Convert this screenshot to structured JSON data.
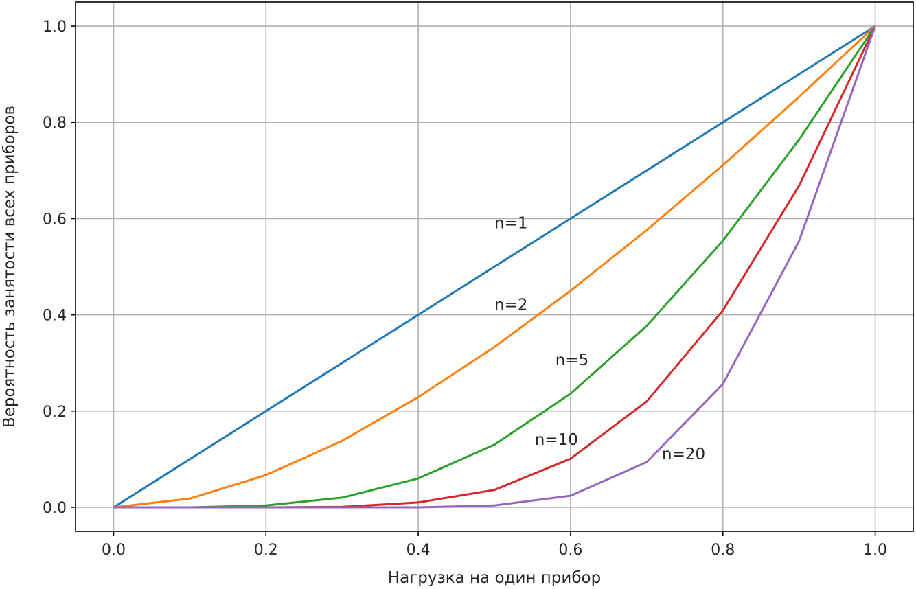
{
  "chart_data": {
    "type": "line",
    "title": "",
    "xlabel": "Нагрузка на один прибор",
    "ylabel": "Вероятность занятости всех приборов",
    "xlim": [
      -0.05,
      1.05
    ],
    "ylim": [
      -0.05,
      1.05
    ],
    "xticks": [
      0.0,
      0.2,
      0.4,
      0.6,
      0.8,
      1.0
    ],
    "xtick_labels": [
      "0.0",
      "0.2",
      "0.4",
      "0.6",
      "0.8",
      "1.0"
    ],
    "yticks": [
      0.0,
      0.2,
      0.4,
      0.6,
      0.8,
      1.0
    ],
    "ytick_labels": [
      "0.0",
      "0.2",
      "0.4",
      "0.6",
      "0.8",
      "1.0"
    ],
    "grid": true,
    "legend": "none",
    "x": [
      0.0,
      0.1,
      0.2,
      0.3,
      0.4,
      0.5,
      0.6,
      0.7,
      0.8,
      0.9,
      1.0
    ],
    "series": [
      {
        "color": "#1f77b4",
        "values": [
          0.0,
          0.1,
          0.2,
          0.3,
          0.4,
          0.5,
          0.6,
          0.7,
          0.8,
          0.9,
          1.0
        ]
      },
      {
        "color": "#ff7f0e",
        "values": [
          0.0,
          0.018,
          0.067,
          0.138,
          0.229,
          0.333,
          0.45,
          0.576,
          0.711,
          0.853,
          1.0
        ]
      },
      {
        "color": "#2ca02c",
        "values": [
          0.0,
          0.0,
          0.004,
          0.02,
          0.06,
          0.13,
          0.236,
          0.377,
          0.554,
          0.764,
          1.0
        ]
      },
      {
        "color": "#d62728",
        "values": [
          0.0,
          0.0,
          0.0,
          0.001,
          0.01,
          0.036,
          0.101,
          0.22,
          0.409,
          0.668,
          1.0
        ]
      },
      {
        "color": "#9467bd",
        "values": [
          0.0,
          0.0,
          0.0,
          0.0,
          0.0,
          0.004,
          0.024,
          0.094,
          0.256,
          0.553,
          1.0
        ]
      }
    ],
    "annotations": [
      {
        "text": "n=1",
        "x": 0.5,
        "y": 0.58
      },
      {
        "text": "n=2",
        "x": 0.5,
        "y": 0.41
      },
      {
        "text": "n=5",
        "x": 0.58,
        "y": 0.295
      },
      {
        "text": "n=10",
        "x": 0.553,
        "y": 0.13
      },
      {
        "text": "n=20",
        "x": 0.72,
        "y": 0.1
      }
    ]
  }
}
